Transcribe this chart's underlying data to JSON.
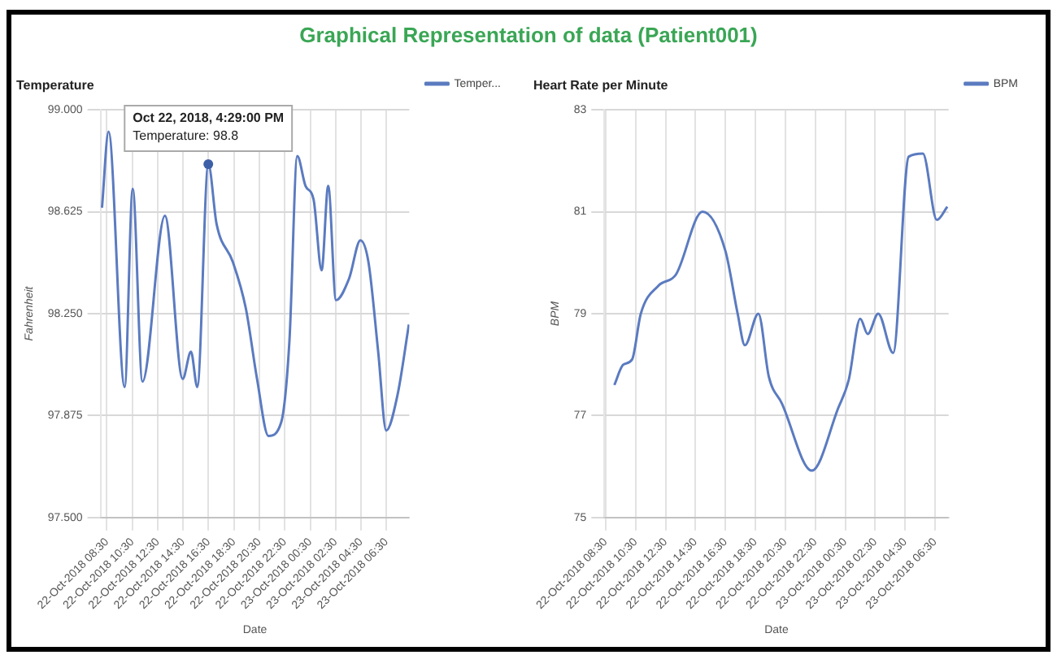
{
  "chart_data": [
    {
      "type": "line",
      "title": "Graphical Representation of data (Patient001)",
      "subtitle": "Temperature",
      "xlabel": "Date",
      "ylabel": "Fahrenheit",
      "x": [
        "2018-10-22T08:07",
        "2018-10-22T08:38",
        "2018-10-22T09:54",
        "2018-10-22T10:32",
        "2018-10-22T11:18",
        "2018-10-22T13:04",
        "2018-10-22T14:28",
        "2018-10-22T15:07",
        "2018-10-22T15:37",
        "2018-10-22T16:29",
        "2018-10-22T17:08",
        "2018-10-22T18:25",
        "2018-10-22T19:26",
        "2018-10-22T20:19",
        "2018-10-22T21:13",
        "2018-10-22T22:13",
        "2018-10-22T22:52",
        "2018-10-22T23:29",
        "2018-10-23T00:08",
        "2018-10-23T00:46",
        "2018-10-23T01:24",
        "2018-10-23T01:55",
        "2018-10-23T02:32",
        "2018-10-23T03:34",
        "2018-10-23T04:27",
        "2018-10-23T05:05",
        "2018-10-23T05:51",
        "2018-10-23T06:29",
        "2018-10-23T07:22",
        "2018-10-23T08:16"
      ],
      "series": [
        {
          "name": "Temper...",
          "color": "#5b7bc0",
          "values": [
            98.64,
            98.92,
            97.98,
            98.71,
            98.0,
            98.61,
            98.01,
            98.11,
            97.98,
            98.8,
            98.58,
            98.44,
            98.27,
            98.01,
            97.8,
            97.85,
            98.15,
            98.83,
            98.72,
            98.67,
            98.41,
            98.72,
            98.3,
            98.38,
            98.52,
            98.44,
            98.11,
            97.82,
            97.95,
            98.21
          ]
        }
      ],
      "xlim": [
        "2018-10-22T08:00",
        "2018-10-23T08:18"
      ],
      "ylim": [
        97.5,
        99.0
      ],
      "xticks": [
        {
          "value": "2018-10-22T08:30",
          "label": "22-Oct-2018 08:30"
        },
        {
          "value": "2018-10-22T10:30",
          "label": "22-Oct-2018 10:30"
        },
        {
          "value": "2018-10-22T12:30",
          "label": "22-Oct-2018 12:30"
        },
        {
          "value": "2018-10-22T14:30",
          "label": "22-Oct-2018 14:30"
        },
        {
          "value": "2018-10-22T16:30",
          "label": "22-Oct-2018 16:30"
        },
        {
          "value": "2018-10-22T18:30",
          "label": "22-Oct-2018 18:30"
        },
        {
          "value": "2018-10-22T20:30",
          "label": "22-Oct-2018 20:30"
        },
        {
          "value": "2018-10-22T22:30",
          "label": "22-Oct-2018 22:30"
        },
        {
          "value": "2018-10-23T00:30",
          "label": "23-Oct-2018 00:30"
        },
        {
          "value": "2018-10-23T02:30",
          "label": "23-Oct-2018 02:30"
        },
        {
          "value": "2018-10-23T04:30",
          "label": "23-Oct-2018 04:30"
        },
        {
          "value": "2018-10-23T06:30",
          "label": "23-Oct-2018 06:30"
        }
      ],
      "yticks": [
        {
          "value": 97.5,
          "label": "97.500"
        },
        {
          "value": 97.875,
          "label": "97.875"
        },
        {
          "value": 98.25,
          "label": "98.250"
        },
        {
          "value": 98.625,
          "label": "98.625"
        },
        {
          "value": 99.0,
          "label": "99.000"
        }
      ],
      "grid": true,
      "legend": "right",
      "annotations": [
        {
          "text": "Oct 22, 2018, 4:29:00 PM\nTemperature: 98.8",
          "x": "2018-10-22T16:29",
          "y": 98.8
        }
      ]
    },
    {
      "type": "line",
      "subtitle": "Heart Rate per Minute",
      "xlabel": "Date",
      "ylabel": "BPM",
      "x": [
        "2018-10-22T09:05",
        "2018-10-22T09:41",
        "2018-10-22T10:16",
        "2018-10-22T10:51",
        "2018-10-22T12:02",
        "2018-10-22T13:12",
        "2018-10-22T14:58",
        "2018-10-22T16:30",
        "2018-10-22T17:19",
        "2018-10-22T17:48",
        "2018-10-22T18:42",
        "2018-10-22T19:24",
        "2018-10-22T20:16",
        "2018-10-22T22:16",
        "2018-10-23T00:02",
        "2018-10-23T00:44",
        "2018-10-23T01:30",
        "2018-10-23T02:00",
        "2018-10-23T02:42",
        "2018-10-23T03:42",
        "2018-10-23T04:44",
        "2018-10-23T05:41",
        "2018-10-23T06:37",
        "2018-10-23T07:19"
      ],
      "series": [
        {
          "name": "BPM",
          "color": "#5b7bc0",
          "values": [
            77.6,
            78.0,
            78.1,
            79.0,
            79.55,
            79.77,
            81.0,
            80.23,
            79.0,
            78.38,
            79.0,
            77.76,
            77.24,
            75.92,
            77.15,
            77.7,
            78.9,
            78.6,
            79.0,
            78.23,
            82.08,
            82.14,
            80.84,
            81.1
          ]
        }
      ],
      "xlim": [
        "2018-10-22T08:25",
        "2018-10-23T07:24"
      ],
      "ylim": [
        75,
        83
      ],
      "xticks": [
        {
          "value": "2018-10-22T08:30",
          "label": "22-Oct-2018 08:30"
        },
        {
          "value": "2018-10-22T10:30",
          "label": "22-Oct-2018 10:30"
        },
        {
          "value": "2018-10-22T12:30",
          "label": "22-Oct-2018 12:30"
        },
        {
          "value": "2018-10-22T14:30",
          "label": "22-Oct-2018 14:30"
        },
        {
          "value": "2018-10-22T16:30",
          "label": "22-Oct-2018 16:30"
        },
        {
          "value": "2018-10-22T18:30",
          "label": "22-Oct-2018 18:30"
        },
        {
          "value": "2018-10-22T20:30",
          "label": "22-Oct-2018 20:30"
        },
        {
          "value": "2018-10-22T22:30",
          "label": "22-Oct-2018 22:30"
        },
        {
          "value": "2018-10-23T00:30",
          "label": "23-Oct-2018 00:30"
        },
        {
          "value": "2018-10-23T02:30",
          "label": "23-Oct-2018 02:30"
        },
        {
          "value": "2018-10-23T04:30",
          "label": "23-Oct-2018 04:30"
        },
        {
          "value": "2018-10-23T06:30",
          "label": "23-Oct-2018 06:30"
        }
      ],
      "yticks": [
        75,
        77,
        79,
        81,
        83
      ],
      "grid": true,
      "legend": "right"
    }
  ]
}
